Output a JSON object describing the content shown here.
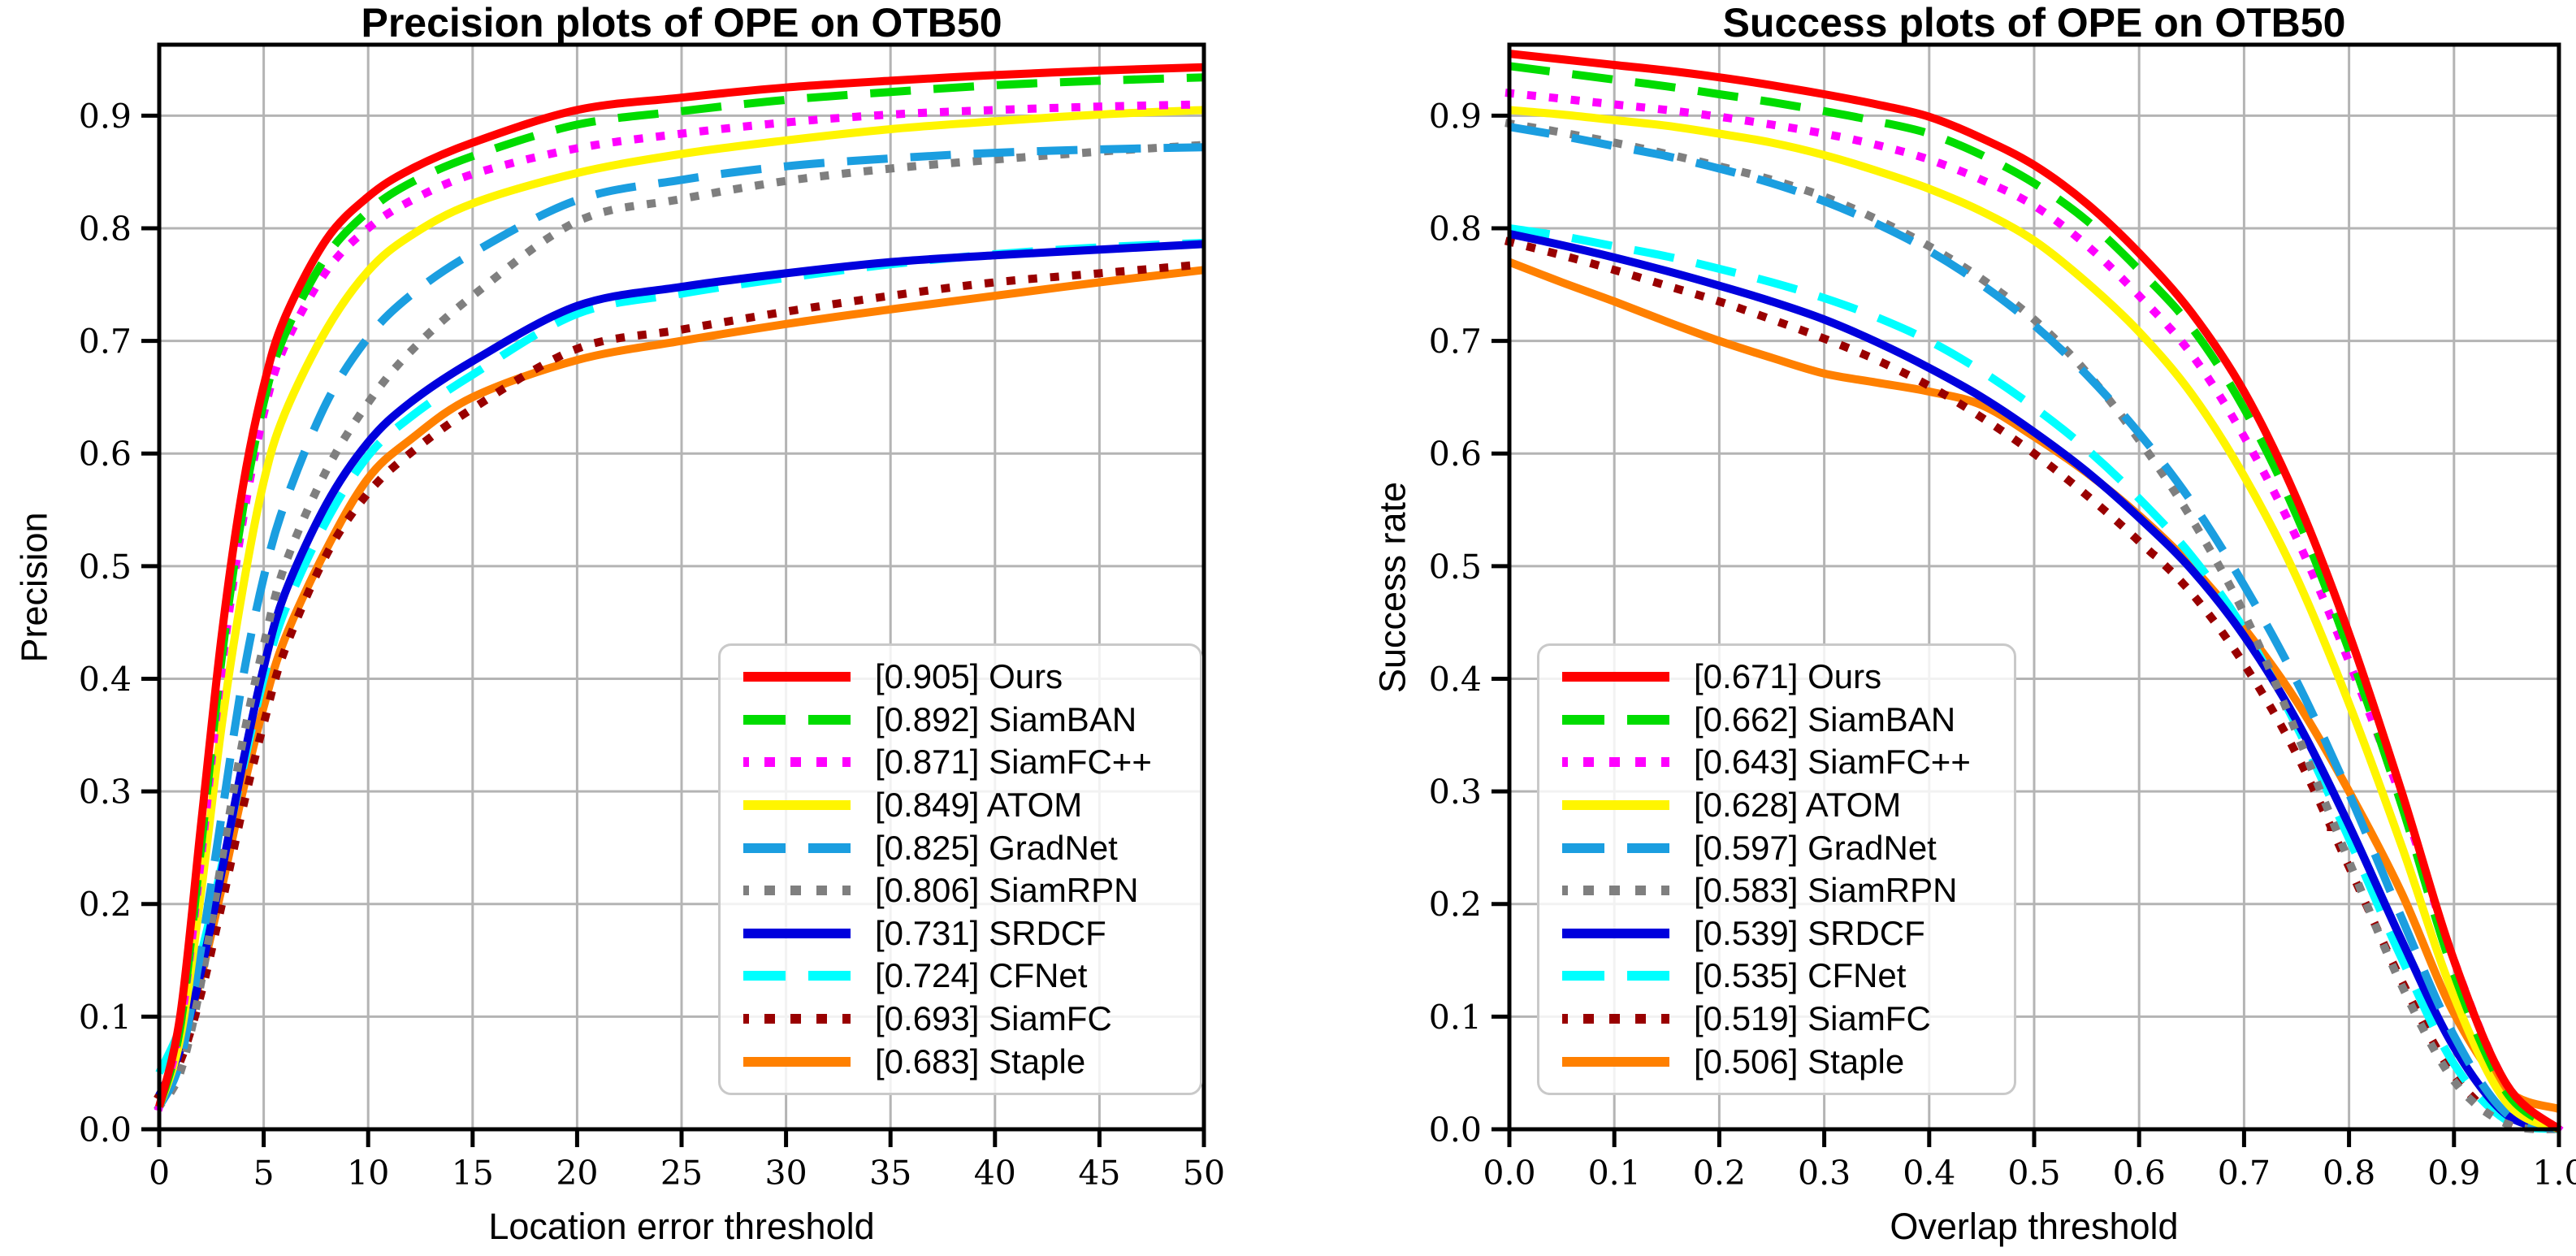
{
  "figure": {
    "background": "#ffffff",
    "grid_color": "#b4b4b4",
    "spine_color": "#000000"
  },
  "chart_data": [
    {
      "type": "line",
      "title": "Precision plots of OPE on OTB50",
      "xlabel": "Location error threshold",
      "ylabel": "Precision",
      "xlim": [
        0,
        50
      ],
      "ylim": [
        0,
        0.963
      ],
      "grid": true,
      "legend_position": "lower right",
      "xticks": [
        0,
        5,
        10,
        15,
        20,
        25,
        30,
        35,
        40,
        45,
        50
      ],
      "xtick_labels": [
        "0",
        "5",
        "10",
        "15",
        "20",
        "25",
        "30",
        "35",
        "40",
        "45",
        "50"
      ],
      "yticks": [
        0,
        0.1,
        0.2,
        0.3,
        0.4,
        0.5,
        0.6,
        0.7,
        0.8,
        0.9
      ],
      "ytick_labels": [
        "0.0",
        "0.1",
        "0.2",
        "0.3",
        "0.4",
        "0.5",
        "0.6",
        "0.7",
        "0.8",
        "0.9"
      ],
      "x": [
        0,
        1,
        2,
        3,
        4,
        5,
        6,
        8,
        10,
        12,
        15,
        20,
        25,
        30,
        35,
        40,
        45,
        50
      ],
      "series": [
        {
          "name": "Ours",
          "score": 0.905,
          "label": "[0.905] Ours",
          "color": "#ff0000",
          "line_style": "solid",
          "y": [
            0.02,
            0.1,
            0.27,
            0.44,
            0.57,
            0.66,
            0.72,
            0.79,
            0.828,
            0.852,
            0.876,
            0.905,
            0.916,
            0.925,
            0.931,
            0.936,
            0.94,
            0.943
          ]
        },
        {
          "name": "SiamBAN",
          "score": 0.892,
          "label": "[0.892] SiamBAN",
          "color": "#00dc00",
          "line_style": "dashed",
          "y": [
            0.02,
            0.09,
            0.25,
            0.42,
            0.55,
            0.645,
            0.705,
            0.775,
            0.815,
            0.84,
            0.864,
            0.892,
            0.904,
            0.914,
            0.921,
            0.927,
            0.931,
            0.934
          ]
        },
        {
          "name": "SiamFC++",
          "score": 0.871,
          "label": "[0.871] SiamFC++",
          "color": "#ff00ff",
          "line_style": "dotted",
          "y": [
            0.02,
            0.09,
            0.24,
            0.41,
            0.54,
            0.635,
            0.695,
            0.762,
            0.8,
            0.824,
            0.848,
            0.871,
            0.884,
            0.894,
            0.901,
            0.905,
            0.908,
            0.91
          ]
        },
        {
          "name": "ATOM",
          "score": 0.849,
          "label": "[0.849] ATOM",
          "color": "#fff500",
          "line_style": "solid",
          "y": [
            0.02,
            0.08,
            0.21,
            0.36,
            0.48,
            0.575,
            0.635,
            0.71,
            0.762,
            0.793,
            0.822,
            0.849,
            0.866,
            0.878,
            0.888,
            0.895,
            0.901,
            0.905
          ]
        },
        {
          "name": "GradNet",
          "score": 0.825,
          "label": "[0.825] GradNet",
          "color": "#1b9ee0",
          "line_style": "dashed",
          "y": [
            0.02,
            0.06,
            0.16,
            0.28,
            0.4,
            0.49,
            0.555,
            0.645,
            0.703,
            0.74,
            0.778,
            0.825,
            0.843,
            0.855,
            0.862,
            0.867,
            0.87,
            0.872
          ]
        },
        {
          "name": "SiamRPN",
          "score": 0.806,
          "label": "[0.806] SiamRPN",
          "color": "#7f7f7f",
          "line_style": "dotted",
          "y": [
            0.02,
            0.05,
            0.13,
            0.24,
            0.345,
            0.43,
            0.5,
            0.585,
            0.645,
            0.69,
            0.74,
            0.806,
            0.826,
            0.842,
            0.853,
            0.861,
            0.868,
            0.874
          ]
        },
        {
          "name": "SRDCF",
          "score": 0.731,
          "label": "[0.731] SRDCF",
          "color": "#0000dd",
          "line_style": "solid",
          "y": [
            0.03,
            0.07,
            0.14,
            0.23,
            0.325,
            0.41,
            0.475,
            0.555,
            0.61,
            0.645,
            0.682,
            0.731,
            0.748,
            0.76,
            0.77,
            0.776,
            0.781,
            0.786
          ]
        },
        {
          "name": "CFNet",
          "score": 0.724,
          "label": "[0.724] CFNet",
          "color": "#00ffff",
          "line_style": "dashed",
          "y": [
            0.05,
            0.09,
            0.155,
            0.235,
            0.32,
            0.4,
            0.46,
            0.54,
            0.598,
            0.632,
            0.67,
            0.724,
            0.742,
            0.756,
            0.768,
            0.777,
            0.783,
            0.787
          ]
        },
        {
          "name": "SiamFC",
          "score": 0.693,
          "label": "[0.693] SiamFC",
          "color": "#990000",
          "line_style": "dotted",
          "y": [
            0.03,
            0.06,
            0.12,
            0.2,
            0.285,
            0.36,
            0.425,
            0.51,
            0.565,
            0.6,
            0.64,
            0.693,
            0.71,
            0.726,
            0.74,
            0.752,
            0.76,
            0.768
          ]
        },
        {
          "name": "Staple",
          "score": 0.683,
          "label": "[0.683] Staple",
          "color": "#ff8000",
          "line_style": "solid",
          "y": [
            0.03,
            0.07,
            0.135,
            0.215,
            0.3,
            0.375,
            0.435,
            0.515,
            0.578,
            0.612,
            0.65,
            0.683,
            0.7,
            0.715,
            0.728,
            0.74,
            0.752,
            0.763
          ]
        }
      ]
    },
    {
      "type": "line",
      "title": "Success plots of OPE on OTB50",
      "xlabel": "Overlap threshold",
      "ylabel": "Success rate",
      "xlim": [
        0,
        1
      ],
      "ylim": [
        0,
        0.963
      ],
      "grid": true,
      "legend_position": "lower left",
      "xticks": [
        0,
        0.1,
        0.2,
        0.3,
        0.4,
        0.5,
        0.6,
        0.7,
        0.8,
        0.9,
        1.0
      ],
      "xtick_labels": [
        "0.0",
        "0.1",
        "0.2",
        "0.3",
        "0.4",
        "0.5",
        "0.6",
        "0.7",
        "0.8",
        "0.9",
        "1.0"
      ],
      "yticks": [
        0,
        0.1,
        0.2,
        0.3,
        0.4,
        0.5,
        0.6,
        0.7,
        0.8,
        0.9
      ],
      "ytick_labels": [
        "0.0",
        "0.1",
        "0.2",
        "0.3",
        "0.4",
        "0.5",
        "0.6",
        "0.7",
        "0.8",
        "0.9"
      ],
      "x": [
        0,
        0.05,
        0.1,
        0.15,
        0.2,
        0.25,
        0.3,
        0.35,
        0.4,
        0.45,
        0.5,
        0.55,
        0.6,
        0.65,
        0.7,
        0.75,
        0.8,
        0.85,
        0.9,
        0.95,
        1.0
      ],
      "series": [
        {
          "name": "Ours",
          "score": 0.671,
          "label": "[0.671] Ours",
          "color": "#ff0000",
          "line_style": "solid",
          "y": [
            0.955,
            0.95,
            0.945,
            0.94,
            0.934,
            0.927,
            0.919,
            0.91,
            0.899,
            0.88,
            0.856,
            0.822,
            0.778,
            0.725,
            0.655,
            0.56,
            0.44,
            0.3,
            0.15,
            0.04,
            0.0
          ]
        },
        {
          "name": "SiamBAN",
          "score": 0.662,
          "label": "[0.662] SiamBAN",
          "color": "#00dc00",
          "line_style": "dashed",
          "y": [
            0.944,
            0.938,
            0.932,
            0.926,
            0.919,
            0.912,
            0.904,
            0.895,
            0.884,
            0.865,
            0.84,
            0.807,
            0.763,
            0.712,
            0.64,
            0.545,
            0.425,
            0.288,
            0.138,
            0.033,
            0.0
          ]
        },
        {
          "name": "SiamFC++",
          "score": 0.643,
          "label": "[0.643] SiamFC++",
          "color": "#ff00ff",
          "line_style": "dotted",
          "y": [
            0.92,
            0.915,
            0.91,
            0.905,
            0.899,
            0.892,
            0.884,
            0.874,
            0.861,
            0.843,
            0.82,
            0.785,
            0.74,
            0.688,
            0.615,
            0.525,
            0.415,
            0.293,
            0.15,
            0.04,
            0.0
          ]
        },
        {
          "name": "ATOM",
          "score": 0.628,
          "label": "[0.628] ATOM",
          "color": "#fff500",
          "line_style": "solid",
          "y": [
            0.905,
            0.901,
            0.896,
            0.891,
            0.884,
            0.876,
            0.865,
            0.851,
            0.835,
            0.815,
            0.789,
            0.752,
            0.708,
            0.653,
            0.58,
            0.49,
            0.378,
            0.252,
            0.118,
            0.024,
            0.0
          ]
        },
        {
          "name": "GradNet",
          "score": 0.597,
          "label": "[0.597] GradNet",
          "color": "#1b9ee0",
          "line_style": "dashed",
          "y": [
            0.89,
            0.882,
            0.873,
            0.864,
            0.853,
            0.84,
            0.824,
            0.804,
            0.78,
            0.75,
            0.714,
            0.67,
            0.618,
            0.557,
            0.483,
            0.398,
            0.298,
            0.188,
            0.083,
            0.014,
            0.0
          ]
        },
        {
          "name": "SiamRPN",
          "score": 0.583,
          "label": "[0.583] SiamRPN",
          "color": "#7f7f7f",
          "line_style": "dotted",
          "y": [
            0.893,
            0.885,
            0.876,
            0.866,
            0.855,
            0.843,
            0.828,
            0.808,
            0.784,
            0.755,
            0.719,
            0.672,
            0.612,
            0.542,
            0.458,
            0.352,
            0.238,
            0.128,
            0.043,
            0.005,
            0.0
          ]
        },
        {
          "name": "SRDCF",
          "score": 0.539,
          "label": "[0.539] SRDCF",
          "color": "#0000dd",
          "line_style": "solid",
          "y": [
            0.795,
            0.785,
            0.774,
            0.762,
            0.749,
            0.735,
            0.719,
            0.699,
            0.676,
            0.65,
            0.619,
            0.584,
            0.543,
            0.497,
            0.438,
            0.363,
            0.27,
            0.168,
            0.073,
            0.013,
            0.0
          ]
        },
        {
          "name": "CFNet",
          "score": 0.535,
          "label": "[0.535] CFNet",
          "color": "#00ffff",
          "line_style": "dashed",
          "y": [
            0.8,
            0.793,
            0.784,
            0.775,
            0.764,
            0.752,
            0.738,
            0.721,
            0.7,
            0.673,
            0.641,
            0.604,
            0.56,
            0.509,
            0.444,
            0.358,
            0.258,
            0.152,
            0.058,
            0.008,
            0.0
          ]
        },
        {
          "name": "SiamFC",
          "score": 0.519,
          "label": "[0.519] SiamFC",
          "color": "#990000",
          "line_style": "dotted",
          "y": [
            0.788,
            0.776,
            0.763,
            0.749,
            0.735,
            0.719,
            0.702,
            0.683,
            0.66,
            0.632,
            0.6,
            0.563,
            0.522,
            0.476,
            0.413,
            0.333,
            0.233,
            0.132,
            0.048,
            0.006,
            0.0
          ]
        },
        {
          "name": "Staple",
          "score": 0.506,
          "label": "[0.506] Staple",
          "color": "#ff8000",
          "line_style": "solid",
          "y": [
            0.77,
            0.752,
            0.735,
            0.717,
            0.7,
            0.685,
            0.671,
            0.663,
            0.655,
            0.643,
            0.615,
            0.583,
            0.545,
            0.5,
            0.445,
            0.38,
            0.3,
            0.21,
            0.103,
            0.035,
            0.018
          ]
        }
      ]
    }
  ]
}
